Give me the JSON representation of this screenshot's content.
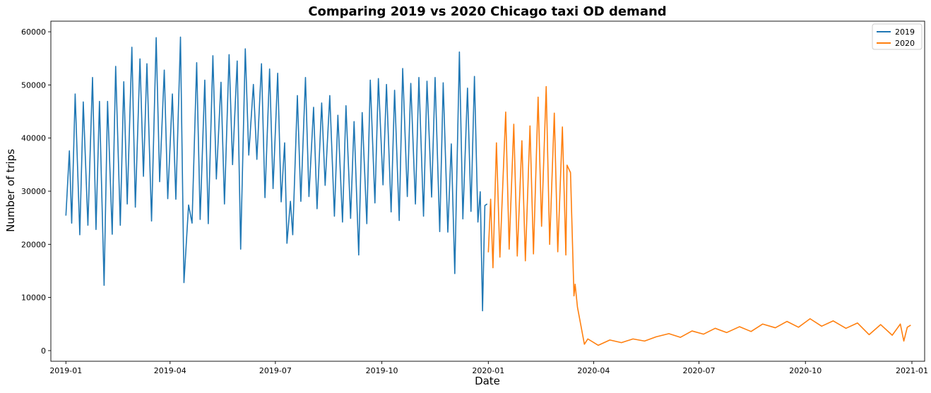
{
  "chart_data": {
    "type": "line",
    "title": "Comparing 2019 vs 2020 Chicago taxi OD demand",
    "xlabel": "Date",
    "ylabel": "Number of trips",
    "xlim": [
      "2018-12-19",
      "2021-01-12"
    ],
    "ylim": [
      -2000,
      62000
    ],
    "x_ticks": [
      {
        "date": "2019-01-01",
        "label": "2019-01"
      },
      {
        "date": "2019-04-01",
        "label": "2019-04"
      },
      {
        "date": "2019-07-01",
        "label": "2019-07"
      },
      {
        "date": "2019-10-01",
        "label": "2019-10"
      },
      {
        "date": "2020-01-01",
        "label": "2020-01"
      },
      {
        "date": "2020-04-01",
        "label": "2020-04"
      },
      {
        "date": "2020-07-01",
        "label": "2020-07"
      },
      {
        "date": "2020-10-01",
        "label": "2020-10"
      },
      {
        "date": "2021-01-01",
        "label": "2021-01"
      }
    ],
    "y_ticks": [
      0,
      10000,
      20000,
      30000,
      40000,
      50000,
      60000
    ],
    "grid": false,
    "legend_position": "top-right",
    "series": [
      {
        "name": "2019",
        "color": "#1f77b4",
        "points": [
          [
            "2019-01-01",
            25400
          ],
          [
            "2019-01-04",
            37600
          ],
          [
            "2019-01-06",
            24000
          ],
          [
            "2019-01-09",
            48300
          ],
          [
            "2019-01-13",
            21800
          ],
          [
            "2019-01-16",
            46800
          ],
          [
            "2019-01-20",
            23600
          ],
          [
            "2019-01-24",
            51400
          ],
          [
            "2019-01-27",
            22800
          ],
          [
            "2019-01-30",
            46900
          ],
          [
            "2019-02-03",
            12300
          ],
          [
            "2019-02-06",
            46900
          ],
          [
            "2019-02-10",
            21900
          ],
          [
            "2019-02-13",
            53500
          ],
          [
            "2019-02-17",
            23600
          ],
          [
            "2019-02-20",
            50600
          ],
          [
            "2019-02-23",
            27600
          ],
          [
            "2019-02-27",
            57100
          ],
          [
            "2019-03-02",
            27000
          ],
          [
            "2019-03-06",
            54900
          ],
          [
            "2019-03-09",
            32800
          ],
          [
            "2019-03-12",
            54000
          ],
          [
            "2019-03-16",
            24400
          ],
          [
            "2019-03-20",
            58900
          ],
          [
            "2019-03-23",
            31800
          ],
          [
            "2019-03-27",
            52800
          ],
          [
            "2019-03-30",
            28600
          ],
          [
            "2019-04-03",
            48300
          ],
          [
            "2019-04-06",
            28500
          ],
          [
            "2019-04-10",
            59000
          ],
          [
            "2019-04-13",
            12800
          ],
          [
            "2019-04-17",
            27400
          ],
          [
            "2019-04-20",
            24000
          ],
          [
            "2019-04-24",
            54200
          ],
          [
            "2019-04-27",
            24700
          ],
          [
            "2019-05-01",
            50900
          ],
          [
            "2019-05-04",
            23900
          ],
          [
            "2019-05-08",
            55500
          ],
          [
            "2019-05-11",
            32300
          ],
          [
            "2019-05-15",
            50500
          ],
          [
            "2019-05-18",
            27600
          ],
          [
            "2019-05-22",
            55700
          ],
          [
            "2019-05-25",
            35000
          ],
          [
            "2019-05-29",
            54500
          ],
          [
            "2019-06-01",
            19100
          ],
          [
            "2019-06-05",
            56800
          ],
          [
            "2019-06-08",
            36800
          ],
          [
            "2019-06-12",
            50100
          ],
          [
            "2019-06-15",
            36000
          ],
          [
            "2019-06-19",
            54000
          ],
          [
            "2019-06-22",
            28800
          ],
          [
            "2019-06-26",
            53000
          ],
          [
            "2019-06-29",
            30500
          ],
          [
            "2019-07-03",
            52200
          ],
          [
            "2019-07-06",
            28000
          ],
          [
            "2019-07-09",
            39100
          ],
          [
            "2019-07-11",
            20200
          ],
          [
            "2019-07-14",
            28100
          ],
          [
            "2019-07-16",
            21800
          ],
          [
            "2019-07-20",
            48000
          ],
          [
            "2019-07-23",
            28100
          ],
          [
            "2019-07-27",
            51400
          ],
          [
            "2019-07-30",
            29000
          ],
          [
            "2019-08-03",
            45800
          ],
          [
            "2019-08-06",
            26700
          ],
          [
            "2019-08-10",
            46600
          ],
          [
            "2019-08-13",
            31100
          ],
          [
            "2019-08-17",
            48000
          ],
          [
            "2019-08-21",
            25300
          ],
          [
            "2019-08-24",
            44300
          ],
          [
            "2019-08-28",
            24200
          ],
          [
            "2019-08-31",
            46100
          ],
          [
            "2019-09-04",
            24900
          ],
          [
            "2019-09-07",
            43100
          ],
          [
            "2019-09-11",
            18000
          ],
          [
            "2019-09-14",
            44800
          ],
          [
            "2019-09-18",
            23900
          ],
          [
            "2019-09-21",
            50900
          ],
          [
            "2019-09-25",
            27800
          ],
          [
            "2019-09-28",
            51200
          ],
          [
            "2019-10-02",
            31200
          ],
          [
            "2019-10-05",
            50100
          ],
          [
            "2019-10-09",
            26100
          ],
          [
            "2019-10-12",
            49000
          ],
          [
            "2019-10-16",
            24500
          ],
          [
            "2019-10-19",
            53100
          ],
          [
            "2019-10-23",
            29000
          ],
          [
            "2019-10-26",
            50300
          ],
          [
            "2019-10-30",
            27600
          ],
          [
            "2019-11-02",
            51400
          ],
          [
            "2019-11-06",
            25300
          ],
          [
            "2019-11-09",
            50700
          ],
          [
            "2019-11-13",
            28900
          ],
          [
            "2019-11-16",
            51400
          ],
          [
            "2019-11-20",
            22400
          ],
          [
            "2019-11-23",
            50400
          ],
          [
            "2019-11-27",
            22300
          ],
          [
            "2019-11-30",
            38900
          ],
          [
            "2019-12-03",
            14500
          ],
          [
            "2019-12-07",
            56200
          ],
          [
            "2019-12-10",
            24800
          ],
          [
            "2019-12-14",
            49400
          ],
          [
            "2019-12-17",
            26200
          ],
          [
            "2019-12-20",
            51600
          ],
          [
            "2019-12-23",
            24200
          ],
          [
            "2019-12-25",
            29900
          ],
          [
            "2019-12-27",
            7500
          ],
          [
            "2019-12-29",
            27300
          ],
          [
            "2019-12-31",
            27600
          ]
        ]
      },
      {
        "name": "2020",
        "color": "#ff7f0e",
        "points": [
          [
            "2020-01-01",
            18500
          ],
          [
            "2020-01-03",
            28500
          ],
          [
            "2020-01-05",
            15600
          ],
          [
            "2020-01-08",
            39100
          ],
          [
            "2020-01-11",
            17600
          ],
          [
            "2020-01-16",
            44900
          ],
          [
            "2020-01-19",
            19100
          ],
          [
            "2020-01-23",
            42600
          ],
          [
            "2020-01-26",
            17800
          ],
          [
            "2020-01-30",
            39500
          ],
          [
            "2020-02-02",
            16900
          ],
          [
            "2020-02-06",
            42300
          ],
          [
            "2020-02-09",
            18200
          ],
          [
            "2020-02-13",
            47700
          ],
          [
            "2020-02-16",
            23400
          ],
          [
            "2020-02-20",
            49700
          ],
          [
            "2020-02-23",
            20000
          ],
          [
            "2020-02-27",
            44700
          ],
          [
            "2020-03-01",
            18600
          ],
          [
            "2020-03-05",
            42100
          ],
          [
            "2020-03-08",
            18000
          ],
          [
            "2020-03-09",
            34900
          ],
          [
            "2020-03-12",
            33500
          ],
          [
            "2020-03-15",
            10300
          ],
          [
            "2020-03-16",
            12500
          ],
          [
            "2020-03-18",
            8200
          ],
          [
            "2020-03-21",
            4700
          ],
          [
            "2020-03-24",
            1200
          ],
          [
            "2020-03-27",
            2200
          ],
          [
            "2020-04-05",
            1000
          ],
          [
            "2020-04-15",
            2000
          ],
          [
            "2020-04-25",
            1500
          ],
          [
            "2020-05-05",
            2200
          ],
          [
            "2020-05-15",
            1800
          ],
          [
            "2020-05-25",
            2600
          ],
          [
            "2020-06-05",
            3200
          ],
          [
            "2020-06-15",
            2500
          ],
          [
            "2020-06-25",
            3700
          ],
          [
            "2020-07-05",
            3100
          ],
          [
            "2020-07-15",
            4200
          ],
          [
            "2020-07-25",
            3400
          ],
          [
            "2020-08-05",
            4500
          ],
          [
            "2020-08-15",
            3600
          ],
          [
            "2020-08-25",
            5000
          ],
          [
            "2020-09-05",
            4300
          ],
          [
            "2020-09-15",
            5500
          ],
          [
            "2020-09-25",
            4400
          ],
          [
            "2020-10-05",
            6000
          ],
          [
            "2020-10-15",
            4600
          ],
          [
            "2020-10-25",
            5600
          ],
          [
            "2020-11-05",
            4200
          ],
          [
            "2020-11-15",
            5200
          ],
          [
            "2020-11-25",
            3000
          ],
          [
            "2020-12-05",
            4900
          ],
          [
            "2020-12-15",
            2900
          ],
          [
            "2020-12-22",
            5000
          ],
          [
            "2020-12-25",
            1800
          ],
          [
            "2020-12-28",
            4400
          ],
          [
            "2020-12-31",
            4800
          ]
        ]
      }
    ]
  }
}
